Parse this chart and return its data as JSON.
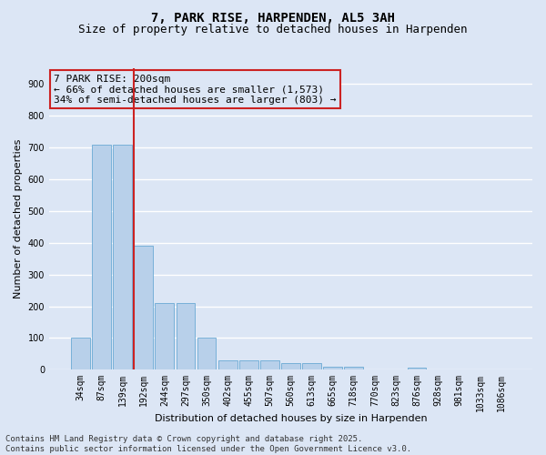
{
  "title_line1": "7, PARK RISE, HARPENDEN, AL5 3AH",
  "title_line2": "Size of property relative to detached houses in Harpenden",
  "xlabel": "Distribution of detached houses by size in Harpenden",
  "ylabel": "Number of detached properties",
  "categories": [
    "34sqm",
    "87sqm",
    "139sqm",
    "192sqm",
    "244sqm",
    "297sqm",
    "350sqm",
    "402sqm",
    "455sqm",
    "507sqm",
    "560sqm",
    "613sqm",
    "665sqm",
    "718sqm",
    "770sqm",
    "823sqm",
    "876sqm",
    "928sqm",
    "981sqm",
    "1033sqm",
    "1086sqm"
  ],
  "values": [
    100,
    710,
    710,
    390,
    210,
    210,
    100,
    30,
    30,
    30,
    20,
    20,
    10,
    10,
    0,
    0,
    5,
    0,
    0,
    0,
    0
  ],
  "bar_color": "#b8d0ea",
  "bar_edge_color": "#6aaad4",
  "vline_index": 3,
  "vline_color": "#cc2222",
  "annotation_text": "7 PARK RISE: 200sqm\n← 66% of detached houses are smaller (1,573)\n34% of semi-detached houses are larger (803) →",
  "annotation_box_edgecolor": "#cc2222",
  "ylim": [
    0,
    950
  ],
  "yticks": [
    0,
    100,
    200,
    300,
    400,
    500,
    600,
    700,
    800,
    900
  ],
  "bg_color": "#dce6f5",
  "grid_color": "#ffffff",
  "footer_line1": "Contains HM Land Registry data © Crown copyright and database right 2025.",
  "footer_line2": "Contains public sector information licensed under the Open Government Licence v3.0.",
  "title_fontsize": 10,
  "subtitle_fontsize": 9,
  "ylabel_fontsize": 8,
  "xlabel_fontsize": 8,
  "tick_fontsize": 7,
  "ann_fontsize": 8,
  "footer_fontsize": 6.5
}
